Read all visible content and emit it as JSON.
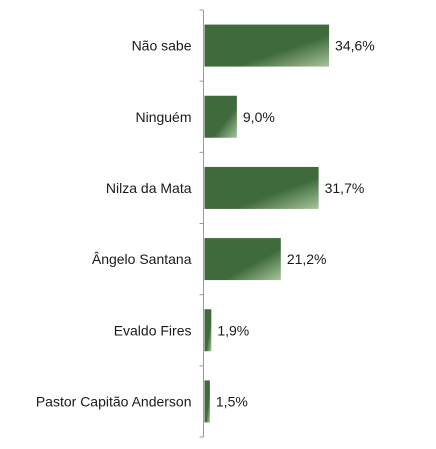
{
  "chart_data": {
    "type": "bar",
    "orientation": "horizontal",
    "categories": [
      "Não sabe",
      "Ninguém",
      "Nilza da Mata",
      "Ângelo Santana",
      "Evaldo Fires",
      "Pastor Capitão Anderson"
    ],
    "values": [
      34.6,
      9.0,
      31.7,
      21.2,
      1.9,
      1.5
    ],
    "value_labels": [
      "34,6%",
      "9,0%",
      "31,7%",
      "21,2%",
      "1,9%",
      "1,5%"
    ],
    "title": "",
    "xlabel": "",
    "ylabel": "",
    "xlim": [
      0,
      100
    ],
    "grid": false,
    "legend": "none",
    "colors": {
      "bar_dark": "#3f6a3c",
      "bar_light": "#a7c59a",
      "axis": "#9a9a9a",
      "text": "#1a1a1a"
    }
  }
}
